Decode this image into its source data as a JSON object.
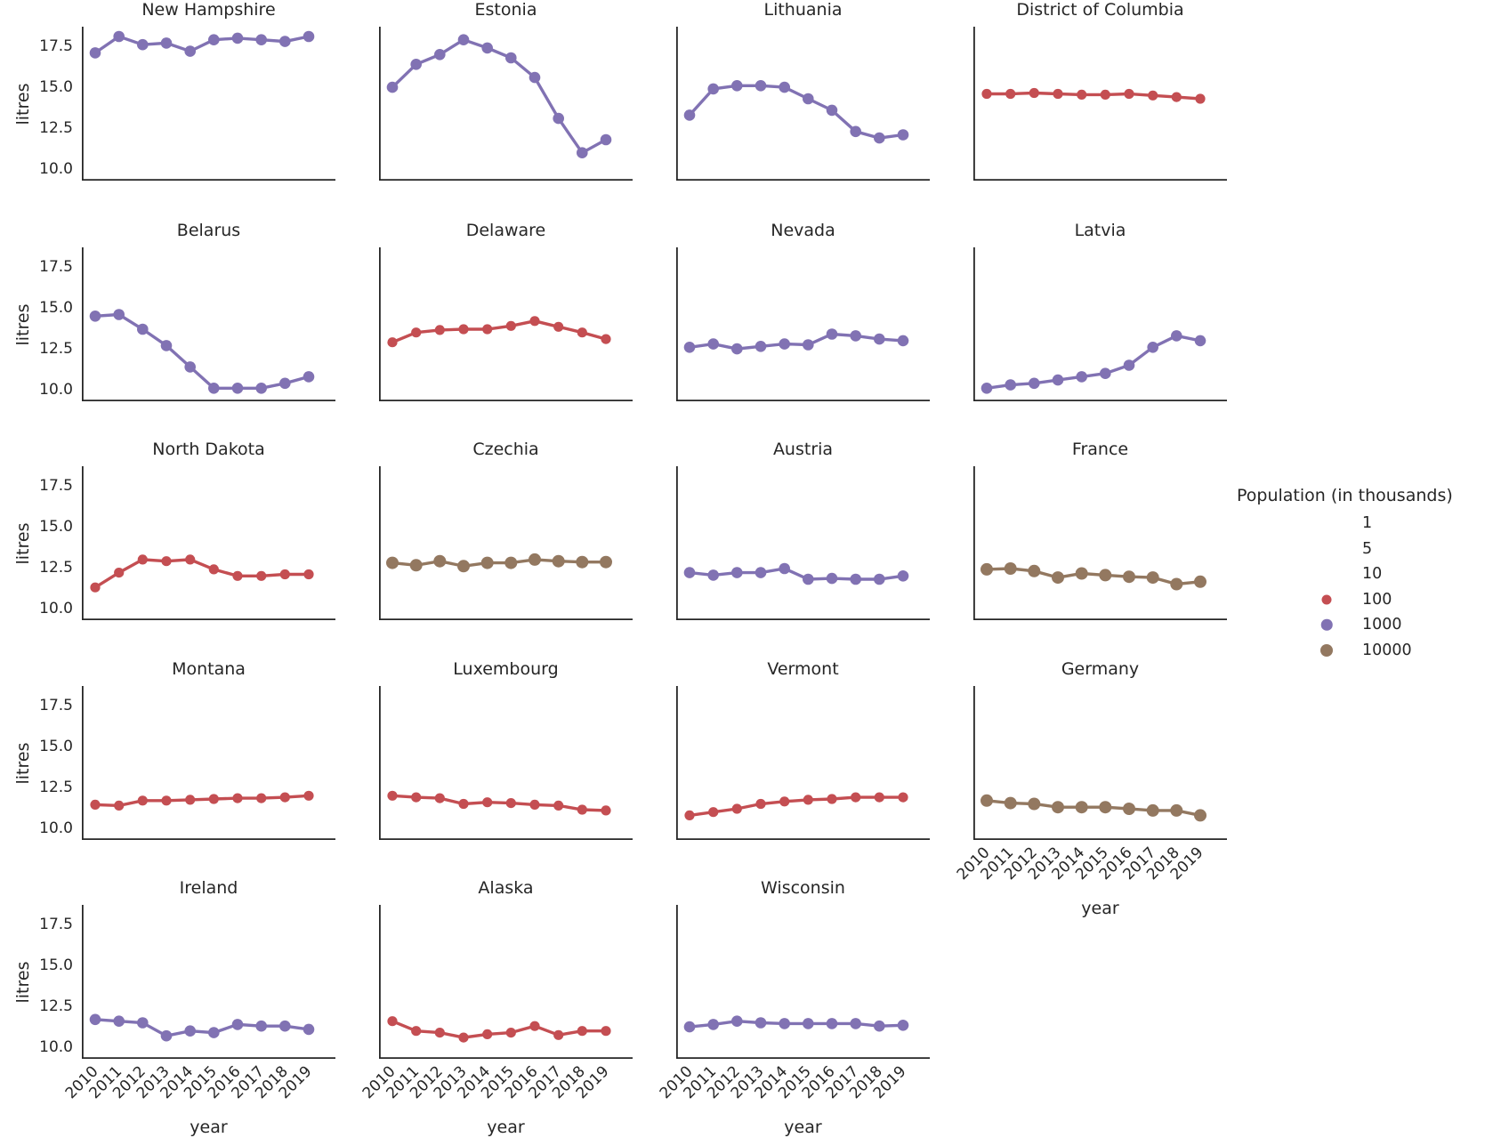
{
  "figure": {
    "background": "#ffffff"
  },
  "axes": {
    "ylabel": "litres",
    "xlabel": "year",
    "yticks": [
      "17.5",
      "15.0",
      "12.5",
      "10.0"
    ],
    "ytick_values": [
      17.5,
      15.0,
      12.5,
      10.0
    ],
    "xticks": [
      "2010",
      "2011",
      "2012",
      "2013",
      "2014",
      "2015",
      "2016",
      "2017",
      "2018",
      "2019"
    ]
  },
  "legend": {
    "title": "Population (in thousands)",
    "items": [
      {
        "label": "1",
        "color": null,
        "dot_diameter": 0
      },
      {
        "label": "5",
        "color": null,
        "dot_diameter": 0
      },
      {
        "label": "10",
        "color": null,
        "dot_diameter": 0
      },
      {
        "label": "100",
        "color": "#c44e52",
        "dot_diameter": 11
      },
      {
        "label": "1000",
        "color": "#8172b3",
        "dot_diameter": 12.5
      },
      {
        "label": "10000",
        "color": "#937860",
        "dot_diameter": 14
      }
    ]
  },
  "colors": {
    "pop_100": "#c44e52",
    "pop_1000": "#8172b3",
    "pop_10000": "#937860",
    "axis": "#262626",
    "text": "#262626"
  },
  "chart_data": {
    "type": "line",
    "title": "",
    "xlabel": "year",
    "ylabel": "litres",
    "x": [
      2010,
      2011,
      2012,
      2013,
      2014,
      2015,
      2016,
      2017,
      2018,
      2019
    ],
    "ylim": [
      9.3,
      18.7
    ],
    "grid": "off",
    "legend_position": "right",
    "size_legend": "Population (in thousands)",
    "facets": [
      {
        "title": "New Hampshire",
        "row": 0,
        "col": 0,
        "population_group": "1000",
        "values": [
          17.1,
          18.1,
          17.6,
          17.7,
          17.2,
          17.9,
          18.0,
          17.9,
          17.8,
          18.1
        ]
      },
      {
        "title": "Estonia",
        "row": 0,
        "col": 1,
        "population_group": "1000",
        "values": [
          15.0,
          16.4,
          17.0,
          17.9,
          17.4,
          16.8,
          15.6,
          13.1,
          11.0,
          11.8
        ]
      },
      {
        "title": "Lithuania",
        "row": 0,
        "col": 2,
        "population_group": "1000",
        "values": [
          13.3,
          14.9,
          15.1,
          15.1,
          15.0,
          14.3,
          13.6,
          12.3,
          11.9,
          12.1
        ]
      },
      {
        "title": "District of Columbia",
        "row": 0,
        "col": 3,
        "population_group": "100",
        "values": [
          14.6,
          14.6,
          14.65,
          14.6,
          14.55,
          14.55,
          14.6,
          14.5,
          14.4,
          14.3
        ]
      },
      {
        "title": "Belarus",
        "row": 1,
        "col": 0,
        "population_group": "1000",
        "values": [
          14.5,
          14.6,
          13.7,
          12.7,
          11.4,
          10.1,
          10.1,
          10.1,
          10.4,
          10.8
        ]
      },
      {
        "title": "Delaware",
        "row": 1,
        "col": 1,
        "population_group": "100",
        "values": [
          12.9,
          13.5,
          13.65,
          13.7,
          13.7,
          13.9,
          14.2,
          13.85,
          13.5,
          13.1
        ]
      },
      {
        "title": "Nevada",
        "row": 1,
        "col": 2,
        "population_group": "1000",
        "values": [
          12.6,
          12.8,
          12.5,
          12.65,
          12.8,
          12.75,
          13.4,
          13.3,
          13.1,
          13.0
        ]
      },
      {
        "title": "Latvia",
        "row": 1,
        "col": 3,
        "population_group": "1000",
        "values": [
          10.1,
          10.3,
          10.4,
          10.6,
          10.8,
          11.0,
          11.5,
          12.6,
          13.3,
          13.0
        ]
      },
      {
        "title": "North Dakota",
        "row": 2,
        "col": 0,
        "population_group": "100",
        "values": [
          11.3,
          12.2,
          13.0,
          12.9,
          13.0,
          12.4,
          12.0,
          12.0,
          12.1,
          12.1
        ]
      },
      {
        "title": "Czechia",
        "row": 2,
        "col": 1,
        "population_group": "10000",
        "values": [
          12.8,
          12.65,
          12.9,
          12.6,
          12.8,
          12.8,
          13.0,
          12.9,
          12.85,
          12.85
        ]
      },
      {
        "title": "Austria",
        "row": 2,
        "col": 2,
        "population_group": "1000",
        "values": [
          12.2,
          12.05,
          12.2,
          12.2,
          12.45,
          11.8,
          11.85,
          11.8,
          11.8,
          12.0
        ]
      },
      {
        "title": "France",
        "row": 2,
        "col": 3,
        "population_group": "10000",
        "values": [
          12.4,
          12.45,
          12.3,
          11.9,
          12.15,
          12.05,
          11.95,
          11.9,
          11.5,
          11.65
        ]
      },
      {
        "title": "Montana",
        "row": 3,
        "col": 0,
        "population_group": "100",
        "values": [
          11.45,
          11.4,
          11.7,
          11.7,
          11.75,
          11.8,
          11.85,
          11.85,
          11.9,
          12.0
        ]
      },
      {
        "title": "Luxembourg",
        "row": 3,
        "col": 1,
        "population_group": "100",
        "values": [
          12.0,
          11.9,
          11.85,
          11.5,
          11.6,
          11.55,
          11.45,
          11.4,
          11.15,
          11.1
        ]
      },
      {
        "title": "Vermont",
        "row": 3,
        "col": 2,
        "population_group": "100",
        "values": [
          10.8,
          11.0,
          11.2,
          11.5,
          11.65,
          11.75,
          11.8,
          11.9,
          11.9,
          11.9
        ]
      },
      {
        "title": "Germany",
        "row": 3,
        "col": 3,
        "population_group": "10000",
        "values": [
          11.7,
          11.55,
          11.5,
          11.3,
          11.3,
          11.3,
          11.2,
          11.1,
          11.1,
          10.8
        ]
      },
      {
        "title": "Ireland",
        "row": 4,
        "col": 0,
        "population_group": "1000",
        "values": [
          11.7,
          11.6,
          11.5,
          10.7,
          11.0,
          10.9,
          11.4,
          11.3,
          11.3,
          11.1
        ]
      },
      {
        "title": "Alaska",
        "row": 4,
        "col": 1,
        "population_group": "100",
        "values": [
          11.6,
          11.0,
          10.9,
          10.6,
          10.8,
          10.9,
          11.3,
          10.75,
          11.0,
          11.0
        ]
      },
      {
        "title": "Wisconsin",
        "row": 4,
        "col": 2,
        "population_group": "1000",
        "values": [
          11.25,
          11.4,
          11.6,
          11.5,
          11.45,
          11.45,
          11.45,
          11.45,
          11.3,
          11.35
        ]
      }
    ]
  }
}
